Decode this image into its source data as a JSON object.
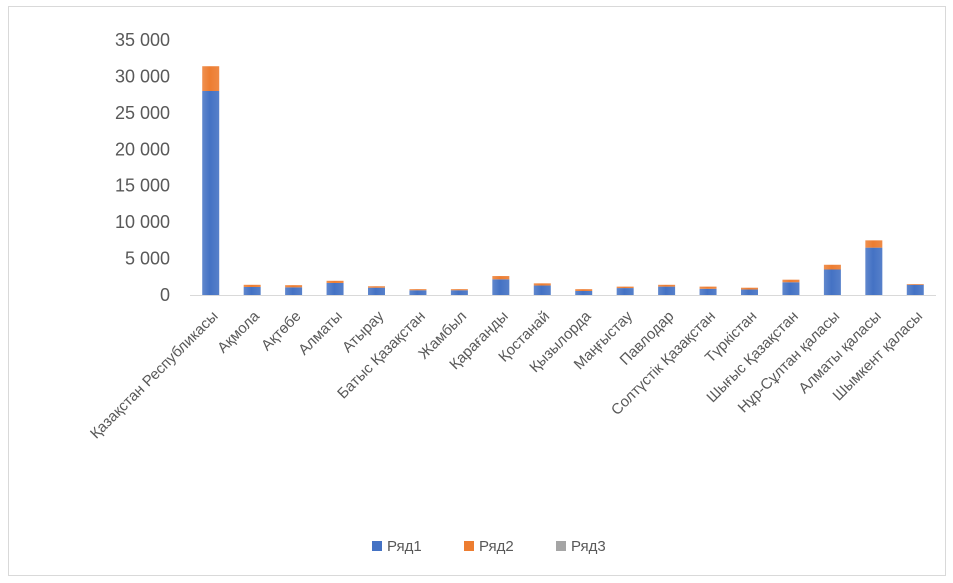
{
  "chart_data": {
    "type": "bar",
    "stacked": true,
    "categories": [
      "Қазақстан Республикасы",
      "Ақмола",
      "Ақтөбе",
      "Алматы",
      "Атырау",
      "Батыс Қазақстан",
      "Жамбыл",
      "Қарағанды",
      "Қостанай",
      "Қызылорда",
      "Маңғыстау",
      "Павлодар",
      "Солтүстік Қазақстан",
      "Түркістан",
      "Шығыс Қазақстан",
      "Нұр-Сұлтан қаласы",
      "Алматы қаласы",
      "Шымкент қаласы"
    ],
    "series": [
      {
        "name": "Ряд1",
        "color": "#4472c4",
        "values": [
          28000,
          1100,
          1050,
          1650,
          1000,
          650,
          650,
          2150,
          1300,
          550,
          950,
          1150,
          850,
          750,
          1750,
          3500,
          6500,
          1400
        ]
      },
      {
        "name": "Ряд2",
        "color": "#ed7d31",
        "values": [
          3400,
          300,
          300,
          300,
          200,
          150,
          150,
          450,
          300,
          250,
          200,
          250,
          300,
          250,
          350,
          650,
          1000,
          100
        ]
      },
      {
        "name": "Ряд3",
        "color": "#a5a5a5",
        "values": [
          0,
          0,
          0,
          0,
          0,
          0,
          0,
          0,
          0,
          0,
          0,
          0,
          0,
          0,
          0,
          0,
          0,
          0
        ]
      }
    ],
    "yticks": [
      "0",
      "5 000",
      "10 000",
      "15 000",
      "20 000",
      "25 000",
      "30 000",
      "35 000"
    ],
    "ylim": [
      0,
      35000
    ],
    "grid": false,
    "legend_position": "bottom"
  }
}
